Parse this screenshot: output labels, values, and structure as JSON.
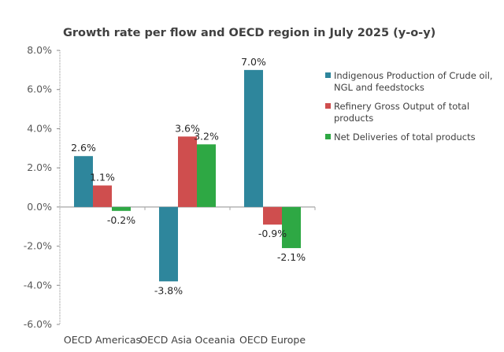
{
  "chart_data": {
    "type": "bar",
    "title": "Growth rate per flow and OECD region in July 2025 (y-o-y)",
    "xlabel": "",
    "ylabel": "",
    "ylim": [
      -6.0,
      8.0
    ],
    "yticks": [
      8.0,
      6.0,
      4.0,
      2.0,
      0.0,
      -2.0,
      -4.0,
      -6.0
    ],
    "ytick_labels": [
      "8.0%",
      "6.0%",
      "4.0%",
      "2.0%",
      "0.0%",
      "-2.0%",
      "-4.0%",
      "-6.0%"
    ],
    "grid": false,
    "legend_position": "right",
    "categories": [
      "OECD Americas",
      "OECD Asia Oceania",
      "OECD Europe"
    ],
    "series": [
      {
        "name": "Indigenous Production of Crude oil, NGL and feedstocks",
        "legend_lines": [
          "Indigenous Production of Crude oil,",
          "NGL and feedstocks"
        ],
        "color": "#2E869C",
        "values": [
          2.6,
          -3.8,
          7.0
        ],
        "labels": [
          "2.6%",
          "-3.8%",
          "7.0%"
        ]
      },
      {
        "name": "Refinery Gross Output of total products",
        "legend_lines": [
          "Refinery Gross Output of total",
          "products"
        ],
        "color": "#CF4E4E",
        "values": [
          1.1,
          3.6,
          -0.9
        ],
        "labels": [
          "1.1%",
          "3.6%",
          "-0.9%"
        ]
      },
      {
        "name": "Net Deliveries of total products",
        "legend_lines": [
          "Net Deliveries of total products"
        ],
        "color": "#2EA844",
        "values": [
          -0.2,
          3.2,
          -2.1
        ],
        "labels": [
          "-0.2%",
          "3.2%",
          "-2.1%"
        ]
      }
    ]
  }
}
